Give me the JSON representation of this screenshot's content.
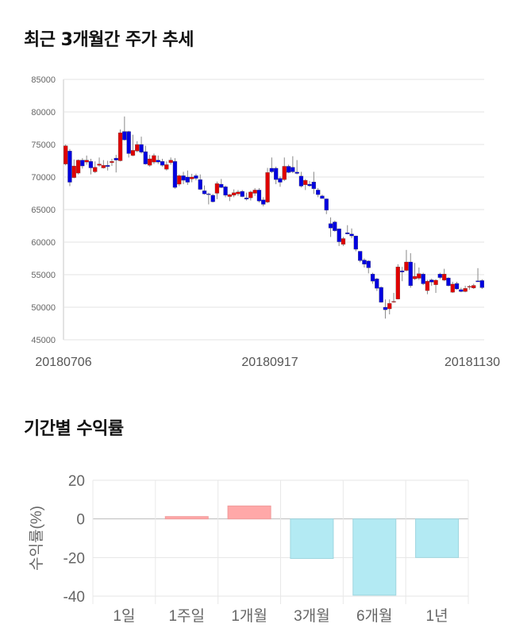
{
  "titles": {
    "stock_trend": "최근 3개월간 주가 추세",
    "period_returns": "기간별 수익률"
  },
  "colors": {
    "up": "#e00000",
    "down": "#0000e0",
    "positive_bar": "#ffa8a8",
    "negative_bar": "#b3eaf3"
  },
  "chart_data": [
    {
      "type": "candlestick",
      "title": "최근 3개월간 주가 추세",
      "ylim": [
        45000,
        85000
      ],
      "yticks": [
        "85000",
        "80000",
        "75000",
        "70000",
        "65000",
        "60000",
        "55000",
        "50000",
        "45000"
      ],
      "xticks": [
        "20180706",
        "20180917",
        "20181130"
      ],
      "ohlc": [
        [
          72000,
          75000,
          71800,
          74800
        ],
        [
          74000,
          74300,
          68600,
          69200
        ],
        [
          69900,
          72700,
          69800,
          71700
        ],
        [
          70600,
          72700,
          70400,
          72600
        ],
        [
          72600,
          72900,
          71300,
          71700
        ],
        [
          72300,
          73300,
          71900,
          72600
        ],
        [
          72400,
          72800,
          70400,
          71400
        ],
        [
          70800,
          72400,
          70600,
          71500
        ],
        [
          71800,
          73000,
          71600,
          72000
        ],
        [
          71400,
          72600,
          71300,
          71800
        ],
        [
          71800,
          72500,
          71000,
          71600
        ],
        [
          72200,
          72800,
          71700,
          72400
        ],
        [
          72900,
          73400,
          70700,
          72600
        ],
        [
          72500,
          77300,
          72400,
          76800
        ],
        [
          77000,
          79300,
          75600,
          75700
        ],
        [
          77000,
          77100,
          73000,
          73600
        ],
        [
          73300,
          76500,
          73200,
          74100
        ],
        [
          74000,
          75500,
          73800,
          75000
        ],
        [
          75000,
          76200,
          73600,
          73800
        ],
        [
          73900,
          74800,
          71900,
          72000
        ],
        [
          71800,
          73400,
          71600,
          72800
        ],
        [
          72300,
          73600,
          72000,
          73300
        ],
        [
          72600,
          73300,
          72000,
          72300
        ],
        [
          72400,
          72800,
          71600,
          71800
        ],
        [
          71200,
          72400,
          71000,
          71900
        ],
        [
          72200,
          73000,
          71900,
          72600
        ],
        [
          72400,
          72900,
          68200,
          68400
        ],
        [
          68900,
          70400,
          68600,
          70200
        ],
        [
          70200,
          70800,
          68900,
          69500
        ],
        [
          70000,
          71000,
          68800,
          69200
        ],
        [
          69700,
          70500,
          69200,
          70000
        ],
        [
          70200,
          70500,
          69500,
          69800
        ],
        [
          69600,
          70400,
          68000,
          68100
        ],
        [
          67900,
          68700,
          67300,
          67400
        ],
        [
          67400,
          67600,
          65800,
          67300
        ],
        [
          67200,
          67400,
          66100,
          66200
        ],
        [
          67500,
          69300,
          66600,
          69000
        ],
        [
          68900,
          69700,
          68300,
          68400
        ],
        [
          68500,
          68700,
          66900,
          67200
        ],
        [
          67000,
          67400,
          66300,
          67300
        ],
        [
          67200,
          68100,
          66900,
          67600
        ],
        [
          67400,
          68000,
          67100,
          67700
        ],
        [
          67800,
          68000,
          66900,
          67000
        ],
        [
          66800,
          67600,
          66400,
          66600
        ],
        [
          66800,
          67900,
          66400,
          67700
        ],
        [
          67500,
          68300,
          67100,
          68000
        ],
        [
          68000,
          68300,
          66100,
          66300
        ],
        [
          66500,
          66900,
          65500,
          65800
        ],
        [
          66150,
          71400,
          66000,
          70700
        ],
        [
          71350,
          73000,
          70600,
          70800
        ],
        [
          71350,
          71600,
          68900,
          69600
        ],
        [
          69800,
          70100,
          68500,
          69200
        ],
        [
          69600,
          73000,
          69400,
          71650
        ],
        [
          71650,
          71900,
          70600,
          70700
        ],
        [
          71500,
          73200,
          70600,
          70800
        ],
        [
          70750,
          72600,
          70400,
          70550
        ],
        [
          70150,
          70800,
          68400,
          68600
        ],
        [
          68800,
          69700,
          68000,
          69500
        ],
        [
          68900,
          69400,
          68500,
          68650
        ],
        [
          69250,
          70800,
          67400,
          68200
        ],
        [
          68000,
          68300,
          66900,
          67300
        ],
        [
          67100,
          67300,
          66700,
          66700
        ],
        [
          66650,
          66700,
          64300,
          64900
        ],
        [
          62850,
          63800,
          60800,
          62150
        ],
        [
          63100,
          63300,
          61600,
          61750
        ],
        [
          62050,
          62100,
          59400,
          60050
        ],
        [
          59650,
          60800,
          59400,
          60550
        ],
        [
          61450,
          62600,
          61200,
          61250
        ],
        [
          61250,
          62100,
          60600,
          60950
        ],
        [
          60950,
          61000,
          58600,
          58900
        ],
        [
          58600,
          58600,
          56900,
          57150
        ],
        [
          57250,
          57500,
          56100,
          56600
        ],
        [
          57100,
          57200,
          55200,
          56050
        ],
        [
          55100,
          55300,
          53600,
          54000
        ],
        [
          54350,
          54500,
          52500,
          52900
        ],
        [
          53050,
          53200,
          50700,
          50750
        ],
        [
          50000,
          51200,
          48250,
          49600
        ],
        [
          49750,
          51200,
          48900,
          50600
        ],
        [
          50900,
          52200,
          50700,
          50900
        ],
        [
          51250,
          56600,
          51200,
          56200
        ],
        [
          55600,
          56200,
          54000,
          55400
        ],
        [
          55650,
          58800,
          55500,
          56950
        ],
        [
          56950,
          58300,
          53000,
          53300
        ],
        [
          54350,
          56800,
          54200,
          54750
        ],
        [
          54450,
          56100,
          54200,
          55150
        ],
        [
          55100,
          55300,
          53400,
          53600
        ],
        [
          52550,
          54200,
          52000,
          54000
        ],
        [
          54200,
          54400,
          53300,
          53850
        ],
        [
          53450,
          54300,
          52200,
          54150
        ],
        [
          55100,
          55300,
          54300,
          54550
        ],
        [
          54150,
          55900,
          54000,
          55100
        ],
        [
          54500,
          54600,
          53200,
          53300
        ],
        [
          52300,
          53900,
          52200,
          53550
        ],
        [
          53650,
          53900,
          52700,
          52800
        ],
        [
          52700,
          53000,
          52300,
          52400
        ],
        [
          52400,
          53300,
          52300,
          52900
        ],
        [
          53100,
          53400,
          52700,
          53200
        ],
        [
          52950,
          53600,
          52800,
          53350
        ],
        [
          54050,
          56000,
          53900,
          53900
        ],
        [
          54100,
          54300,
          52800,
          53000
        ]
      ]
    },
    {
      "type": "bar",
      "title": "기간별 수익률",
      "ylabel": "수익률(%)",
      "ylim": [
        -40,
        20
      ],
      "yticks": [
        "20",
        "0",
        "-20",
        "-40"
      ],
      "categories": [
        "1일",
        "1주일",
        "1개월",
        "3개월",
        "6개월",
        "1년"
      ],
      "values": [
        0,
        1.2,
        6.7,
        -20.5,
        -39.5,
        -20.0
      ]
    }
  ]
}
